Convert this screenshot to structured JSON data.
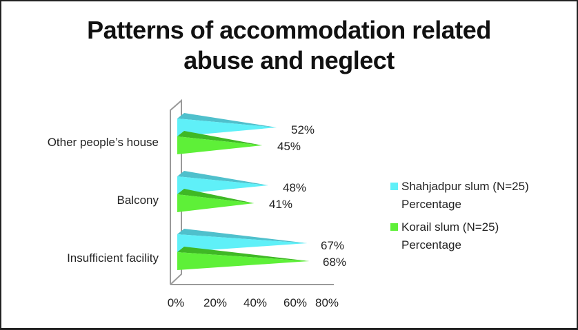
{
  "chart_data": {
    "type": "bar",
    "orientation": "horizontal",
    "style": "3d-cone",
    "title": "Patterns of accommodation related abuse and neglect",
    "title_lines": [
      "Patterns of accommodation related",
      "abuse and neglect"
    ],
    "categories": [
      "Other people’s house",
      "Balcony",
      "Insufficient facility"
    ],
    "series": [
      {
        "name": "Shahjadpur slum (N=25) Percentage",
        "color": "#5ff0f8",
        "values": [
          52,
          48,
          67
        ],
        "labels": [
          "52%",
          "48%",
          "67%"
        ]
      },
      {
        "name": "Korail slum  (N=25) Percentage",
        "color": "#5ef038",
        "values": [
          45,
          41,
          68
        ],
        "labels": [
          "45%",
          "41%",
          "68%"
        ]
      }
    ],
    "xlabel": "",
    "ylabel": "",
    "xlim": [
      0,
      80
    ],
    "x_ticks": [
      "0%",
      "20%",
      "40%",
      "60%",
      "80%"
    ],
    "grid": false,
    "legend_position": "right",
    "legend": [
      {
        "line1": "Shahjadpur slum (N=25)",
        "line2": "Percentage",
        "color": "#5ff0f8"
      },
      {
        "line1": "Korail slum  (N=25)",
        "line2": "Percentage",
        "color": "#5ef038"
      }
    ]
  }
}
